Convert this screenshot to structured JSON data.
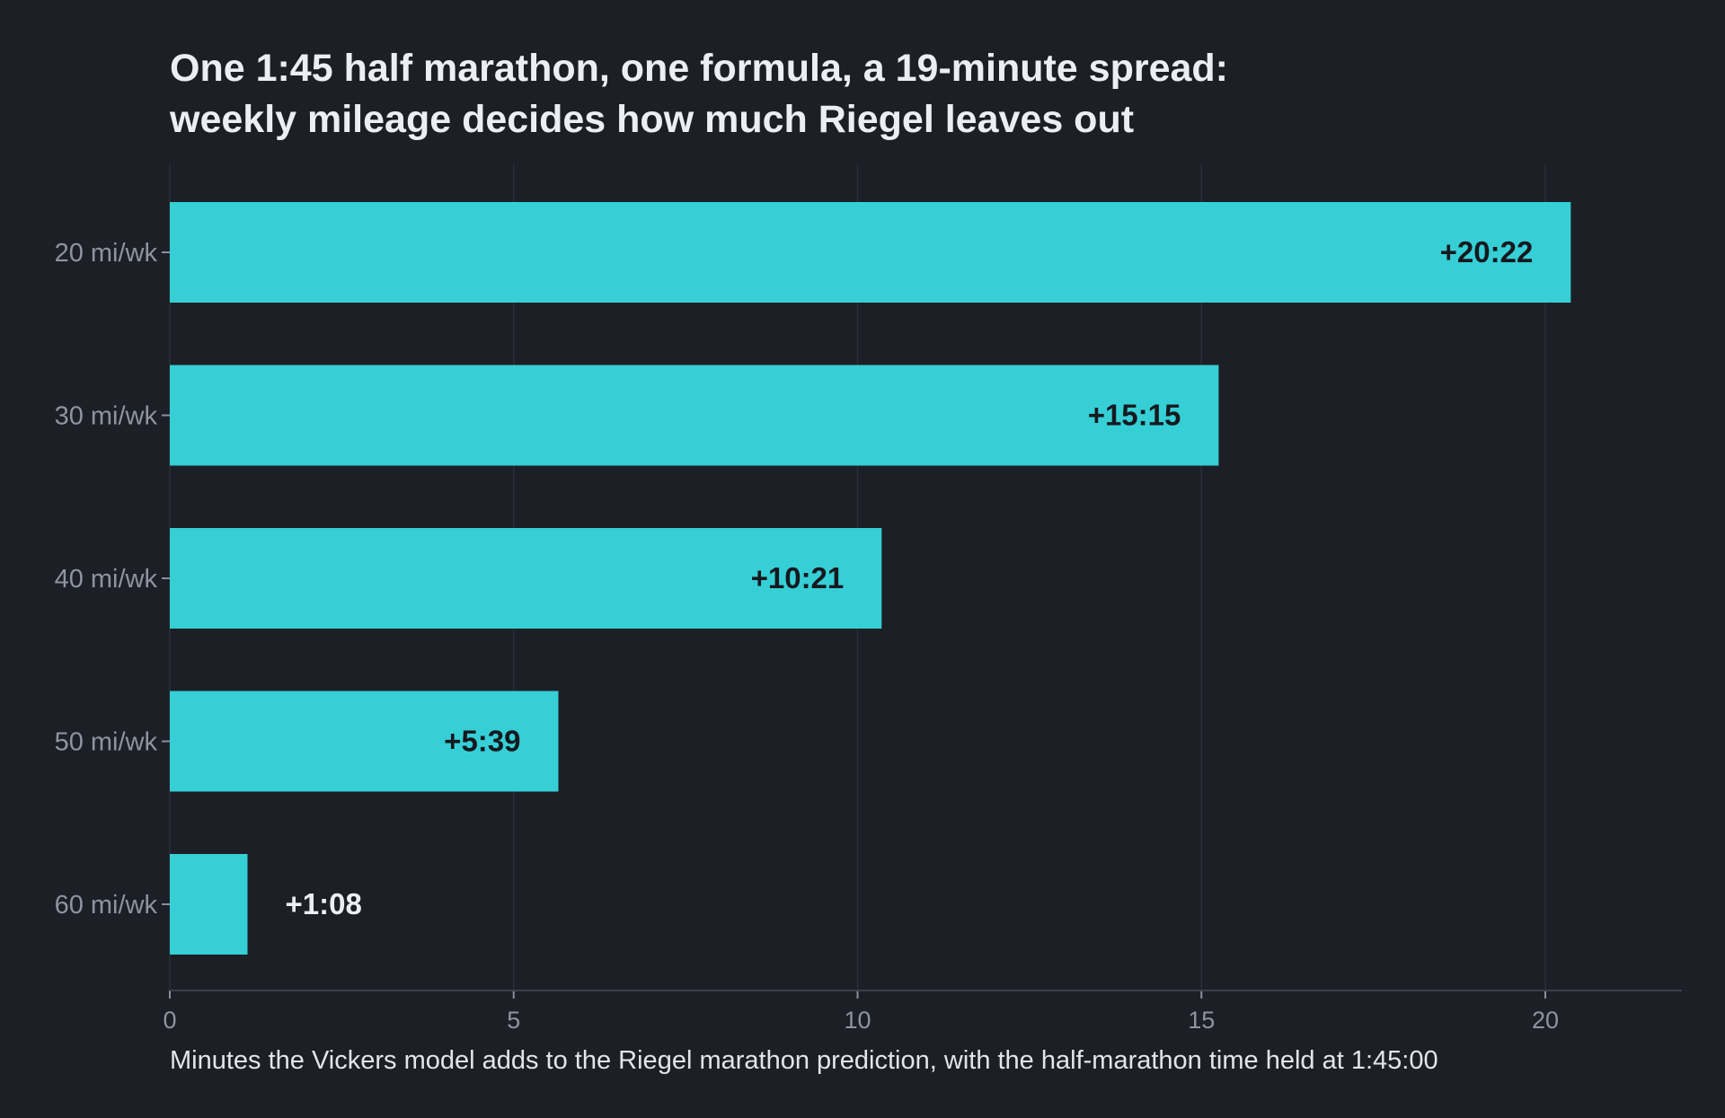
{
  "chart_data": {
    "type": "bar",
    "orientation": "horizontal",
    "title_lines": [
      "One 1:45 half marathon, one formula, a 19-minute spread:",
      "weekly mileage decides how much Riegel leaves out"
    ],
    "xlabel": "Minutes the Vickers model adds to the Riegel marathon prediction, with the half-marathon time held at 1:45:00",
    "ylabel": "",
    "categories": [
      "20 mi/wk",
      "30 mi/wk",
      "40 mi/wk",
      "50 mi/wk",
      "60 mi/wk"
    ],
    "values": [
      20.37,
      15.25,
      10.35,
      5.65,
      1.13
    ],
    "data_labels": [
      "+20:22",
      "+15:15",
      "+10:21",
      "+5:39",
      "+1:08"
    ],
    "xlim": [
      0,
      22
    ],
    "xticks": [
      0,
      5,
      10,
      15,
      20
    ],
    "grid": "vertical",
    "legend": "none",
    "colors": {
      "background": "#1c1f26",
      "bar": "#36cfd6",
      "label_inside": "#16191f",
      "label_outside": "#eceef3",
      "title": "#eceef3",
      "tick_text": "#8e94a0",
      "grid": "#2a2e37"
    }
  }
}
